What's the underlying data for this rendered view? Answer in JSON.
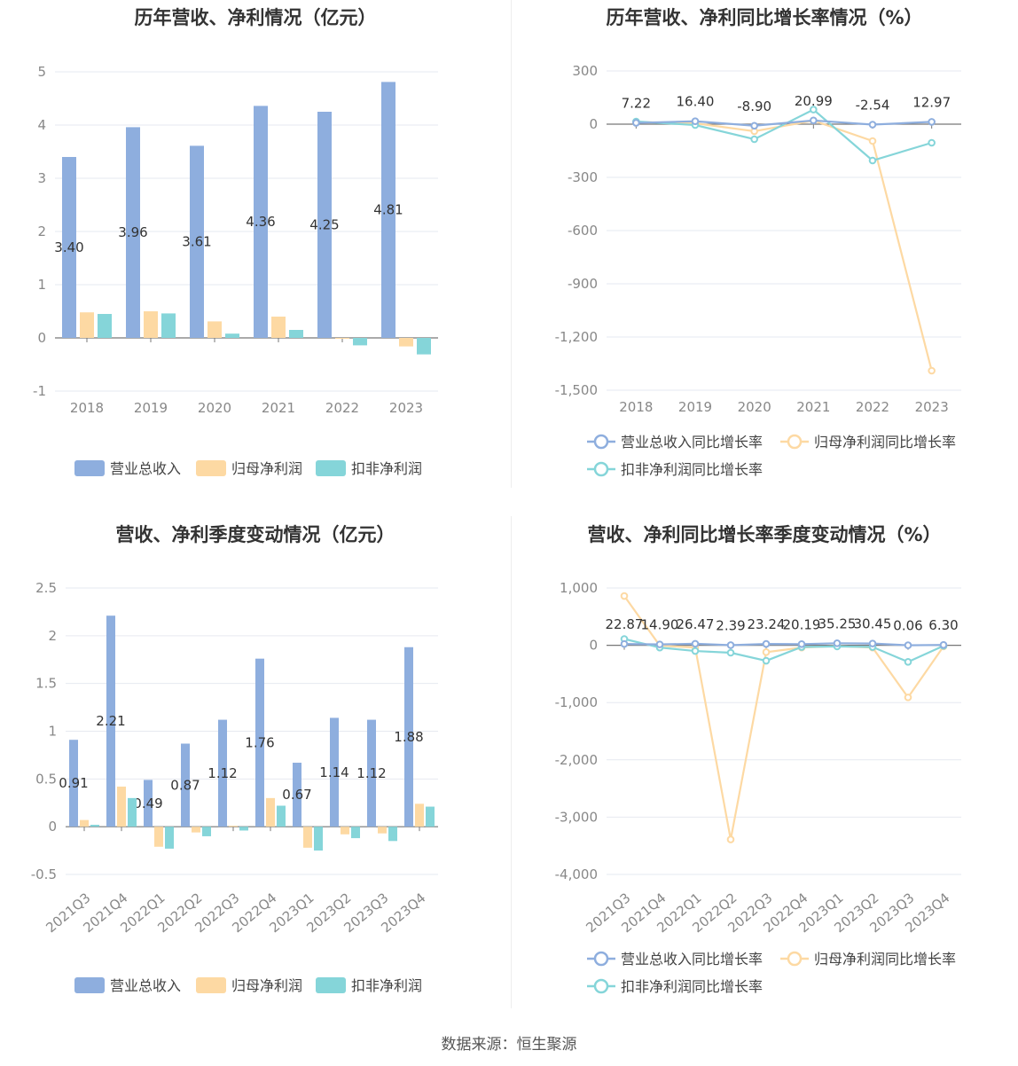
{
  "source": "数据来源：恒生聚源",
  "legend_bar": [
    "营业总收入",
    "归母净利润",
    "扣非净利润"
  ],
  "legend_line": [
    "营业总收入同比增长率",
    "归母净利润同比增长率",
    "扣非净利润同比增长率"
  ],
  "colors": {
    "revenue": "#8eaede",
    "net": "#fdd9a3",
    "deducted": "#85d5d9",
    "revenue_line": "#8eaede",
    "net_line": "#fdd9a3",
    "deducted_line": "#85d5d9"
  },
  "chart_data": [
    {
      "type": "bar",
      "title": "历年营收、净利情况（亿元）",
      "categories": [
        "2018",
        "2019",
        "2020",
        "2021",
        "2022",
        "2023"
      ],
      "ylim": [
        -1,
        5
      ],
      "yticks": [
        "-1",
        "0",
        "1",
        "2",
        "3",
        "4",
        "5"
      ],
      "series": [
        {
          "name": "营业总收入",
          "values": [
            3.4,
            3.96,
            3.61,
            4.36,
            4.25,
            4.81
          ],
          "labels": [
            "3.40",
            "3.96",
            "3.61",
            "4.36",
            "4.25",
            "4.81"
          ]
        },
        {
          "name": "归母净利润",
          "values": [
            0.48,
            0.5,
            0.31,
            0.4,
            -0.01,
            -0.16
          ]
        },
        {
          "name": "扣非净利润",
          "values": [
            0.45,
            0.46,
            0.08,
            0.15,
            -0.14,
            -0.31
          ]
        }
      ]
    },
    {
      "type": "line",
      "title": "历年营收、净利同比增长率情况（%）",
      "categories": [
        "2018",
        "2019",
        "2020",
        "2021",
        "2022",
        "2023"
      ],
      "ylim": [
        -1500,
        300
      ],
      "yticks": [
        "-1,500",
        "-1,200",
        "-900",
        "-600",
        "-300",
        "0",
        "300"
      ],
      "series": [
        {
          "name": "营业总收入同比增长率",
          "values": [
            7.22,
            16.4,
            -8.9,
            20.99,
            -2.54,
            12.97
          ],
          "labels": [
            "7.22",
            "16.40",
            "-8.90",
            "20.99",
            "-2.54",
            "12.97"
          ]
        },
        {
          "name": "归母净利润同比增长率",
          "values": [
            12,
            5,
            -40,
            20,
            -95,
            -1390
          ]
        },
        {
          "name": "扣非净利润同比增长率",
          "values": [
            15,
            -5,
            -85,
            82,
            -205,
            -105
          ]
        }
      ]
    },
    {
      "type": "bar",
      "title": "营收、净利季度变动情况（亿元）",
      "categories": [
        "2021Q3",
        "2021Q4",
        "2022Q1",
        "2022Q2",
        "2022Q3",
        "2022Q4",
        "2023Q1",
        "2023Q2",
        "2023Q3",
        "2023Q4"
      ],
      "ylim": [
        -0.5,
        2.5
      ],
      "yticks": [
        "-0.5",
        "0",
        "0.5",
        "1",
        "1.5",
        "2",
        "2.5"
      ],
      "series": [
        {
          "name": "营业总收入",
          "values": [
            0.91,
            2.21,
            0.49,
            0.87,
            1.12,
            1.76,
            0.67,
            1.14,
            1.12,
            1.88
          ],
          "labels": [
            "0.91",
            "2.21",
            "0.49",
            "0.87",
            "1.12",
            "1.76",
            "0.67",
            "1.14",
            "1.12",
            "1.88"
          ]
        },
        {
          "name": "归母净利润",
          "values": [
            0.07,
            0.42,
            -0.21,
            -0.06,
            0.01,
            0.3,
            -0.22,
            -0.08,
            -0.07,
            0.24
          ]
        },
        {
          "name": "扣非净利润",
          "values": [
            0.02,
            0.3,
            -0.23,
            -0.1,
            -0.04,
            0.22,
            -0.25,
            -0.12,
            -0.15,
            0.21
          ]
        }
      ]
    },
    {
      "type": "line",
      "title": "营收、净利同比增长率季度变动情况（%）",
      "categories": [
        "2021Q3",
        "2021Q4",
        "2022Q1",
        "2022Q2",
        "2022Q3",
        "2022Q4",
        "2023Q1",
        "2023Q2",
        "2023Q3",
        "2023Q4"
      ],
      "ylim": [
        -4000,
        1000
      ],
      "yticks": [
        "-4,000",
        "-3,000",
        "-2,000",
        "-1,000",
        "0",
        "1,000"
      ],
      "series": [
        {
          "name": "营业总收入同比增长率",
          "values": [
            22.87,
            14.9,
            26.47,
            2.39,
            23.24,
            20.19,
            35.25,
            30.45,
            0.06,
            6.3
          ],
          "labels": [
            "22.87",
            "14.90",
            "26.47",
            "2.39",
            "23.24",
            "20.19",
            "35.25",
            "30.45",
            "0.06",
            "6.30"
          ]
        },
        {
          "name": "归母净利润同比增长率",
          "values": [
            860,
            -5,
            -40,
            -3390,
            -120,
            -40,
            -15,
            -40,
            -910,
            -20
          ]
        },
        {
          "name": "扣非净利润同比增长率",
          "values": [
            110,
            -40,
            -100,
            -130,
            -270,
            -30,
            -20,
            -30,
            -290,
            -10
          ]
        }
      ]
    }
  ]
}
